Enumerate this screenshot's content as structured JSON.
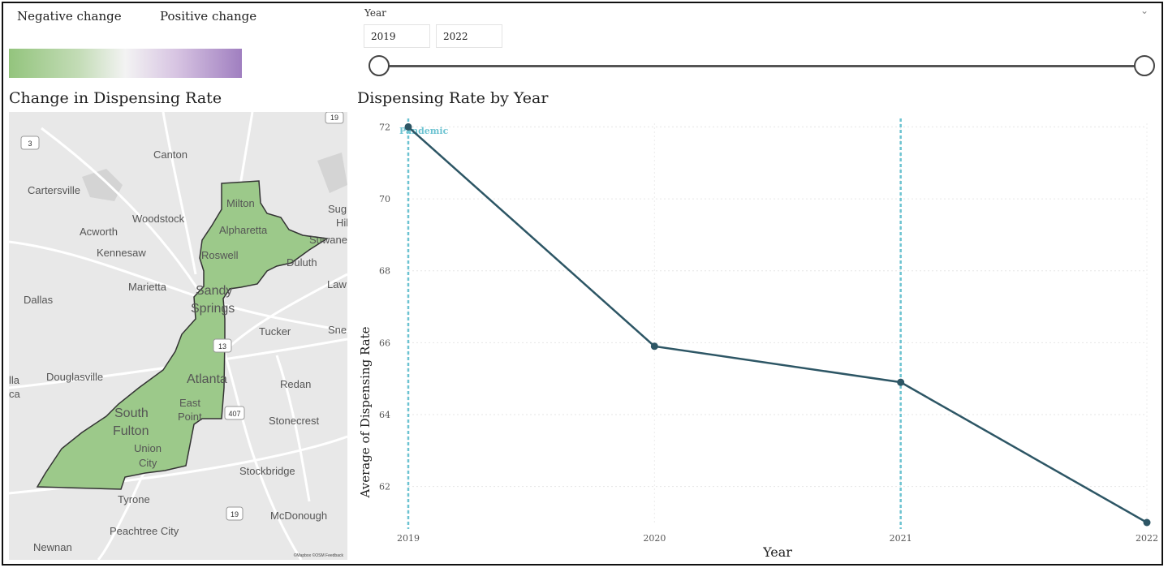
{
  "legend": {
    "negative_label": "Negative change",
    "positive_label": "Positive change",
    "colors": {
      "negative": "#93c47d",
      "neutral": "#f3f3f3",
      "positive": "#a07fc0"
    }
  },
  "year_slicer": {
    "title": "Year",
    "start": "2019",
    "end": "2022",
    "chevron_icon": "chevron-down-icon"
  },
  "map": {
    "title": "Change in Dispensing Rate",
    "fill_color": "#9cc98a",
    "road_shields": [
      "3",
      "19",
      "13",
      "407",
      "19"
    ],
    "places": [
      "Canton",
      "Cartersville",
      "Woodstock",
      "Acworth",
      "Kennesaw",
      "Marietta",
      "Dallas",
      "Douglasville",
      "Tyrone",
      "Peachtree City",
      "Newnan",
      "Stockbridge",
      "McDonough",
      "Stonecrest",
      "Redan",
      "Tucker",
      "Sne",
      "Law",
      "Sug",
      "Hil",
      "Duluth",
      "Suwanee",
      "Milton",
      "Alpharetta",
      "Roswell",
      "Sandy",
      "Springs",
      "Atlanta",
      "East",
      "Point",
      "South",
      "Fulton",
      "Union",
      "City",
      "lla",
      "ca"
    ],
    "attribution": "©Mapbox ©OSM Feedback"
  },
  "chart_data": {
    "type": "line",
    "title": "Dispensing Rate by Year",
    "xlabel": "Year",
    "ylabel": "Average of Dispensing Rate",
    "x": [
      2019,
      2020,
      2021,
      2022
    ],
    "series": [
      {
        "values": [
          72.0,
          65.9,
          64.9,
          61.0
        ]
      }
    ],
    "xticks": [
      "2019",
      "2020",
      "2021",
      "2022"
    ],
    "yticks": [
      62,
      64,
      66,
      68,
      70,
      72
    ],
    "ylim": [
      61.0,
      72.1
    ],
    "line_color": "#2d5665",
    "reference_lines": [
      {
        "x": 2019,
        "label": "Pandemic",
        "color": "#6cc3d1"
      },
      {
        "x": 2021,
        "label": "",
        "color": "#6cc3d1"
      }
    ],
    "grid": true
  }
}
